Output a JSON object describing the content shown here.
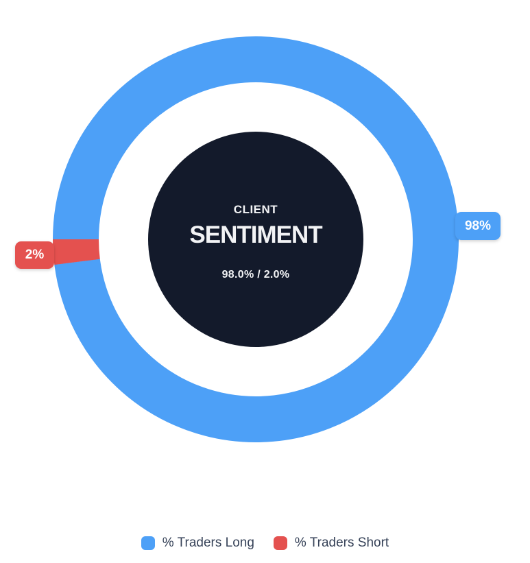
{
  "chart_data": {
    "type": "doughnut",
    "title": "CLIENT SENTIMENT",
    "series": [
      {
        "name": "% Traders Long",
        "value": 98.0,
        "color": "#4DA0F7",
        "callout": "98%"
      },
      {
        "name": "% Traders Short",
        "value": 2.0,
        "color": "#E4514F",
        "callout": "2%"
      }
    ],
    "start_position": "9-oclock, clockwise; short slice just below 9 o'clock",
    "geometry": {
      "outer_radius": 296,
      "ring_thickness": 67,
      "inner_disc_radius": 157
    },
    "center_label": {
      "kicker": "CLIENT",
      "title": "SENTIMENT",
      "values_text": "98.0% / 2.0%",
      "background": "#131A2B",
      "text_color": "#F2F3F5"
    },
    "legend_position": "bottom"
  }
}
